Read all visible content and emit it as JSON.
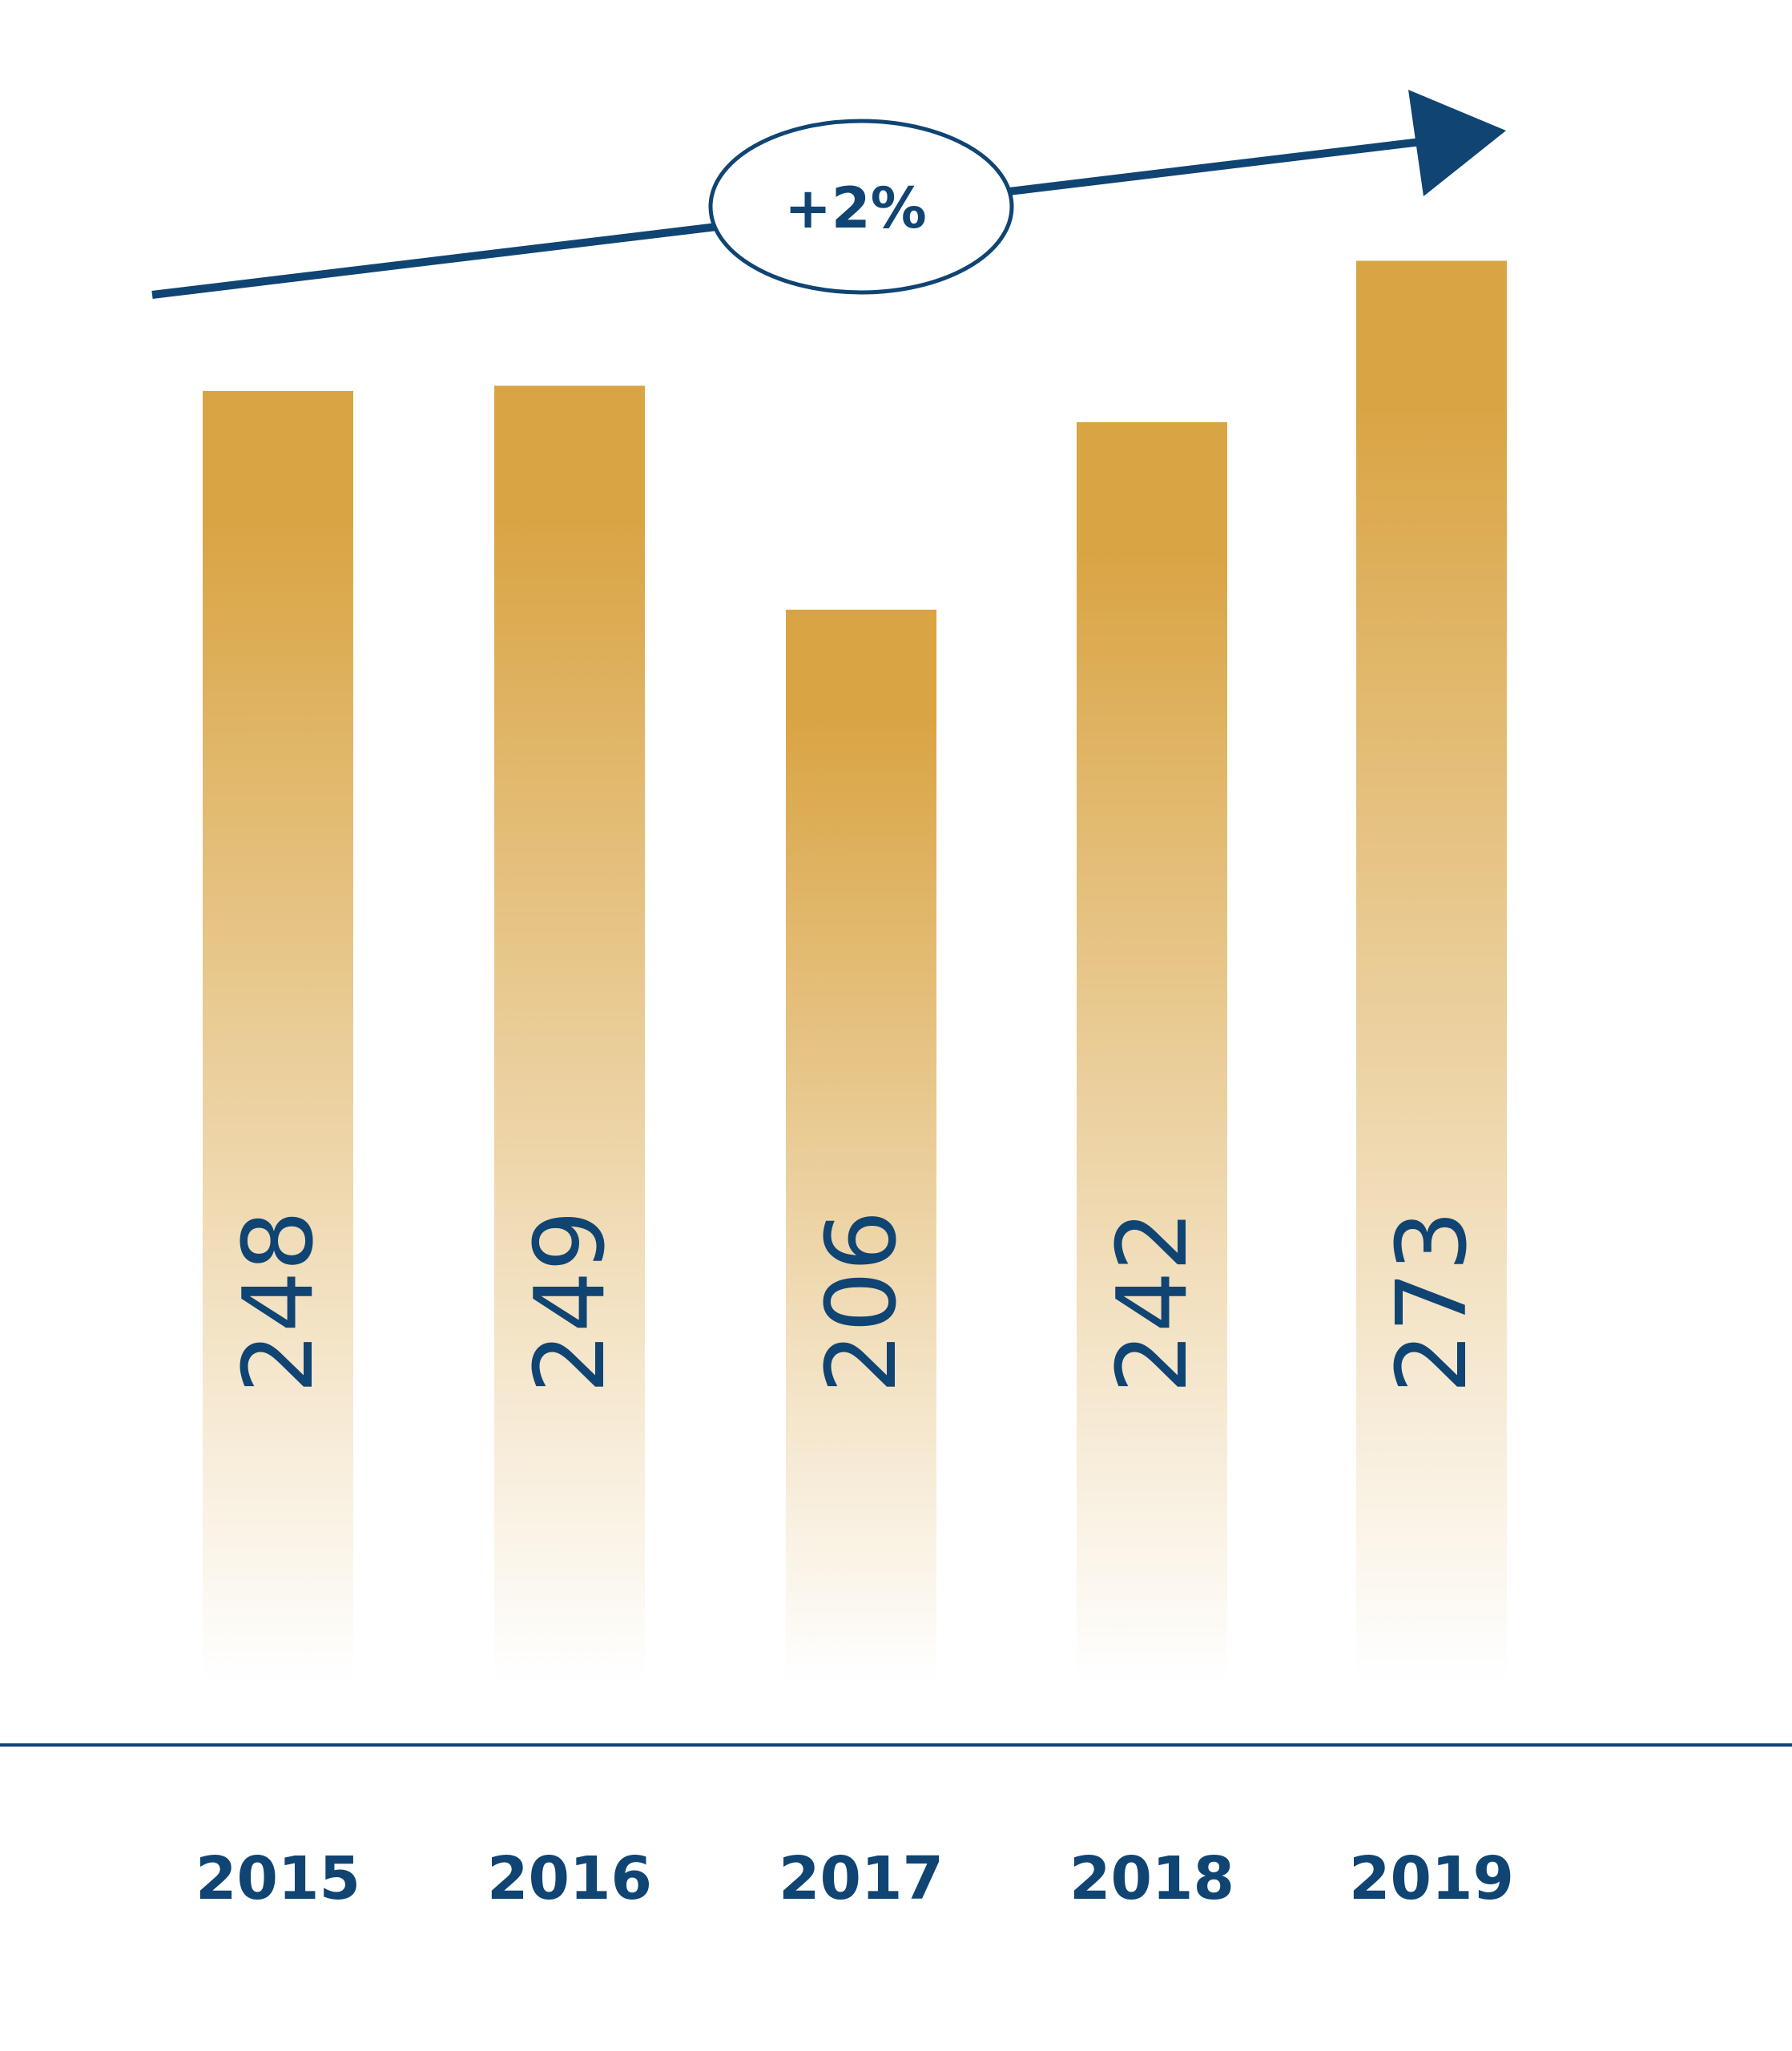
{
  "chart_data": {
    "type": "bar",
    "categories": [
      "2015",
      "2016",
      "2017",
      "2018",
      "2019"
    ],
    "values": [
      248,
      249,
      206,
      242,
      273
    ],
    "value_labels": [
      "248",
      "249",
      "206",
      "242",
      "273"
    ],
    "trend_label": "+2%",
    "title": "",
    "xlabel": "",
    "ylabel": "",
    "grid": false,
    "legend": "none"
  },
  "colors": {
    "bar_top": "#D9A443",
    "bar_bottom": "#FFFFFF",
    "text": "#0F4473",
    "axis": "#0F4473"
  }
}
